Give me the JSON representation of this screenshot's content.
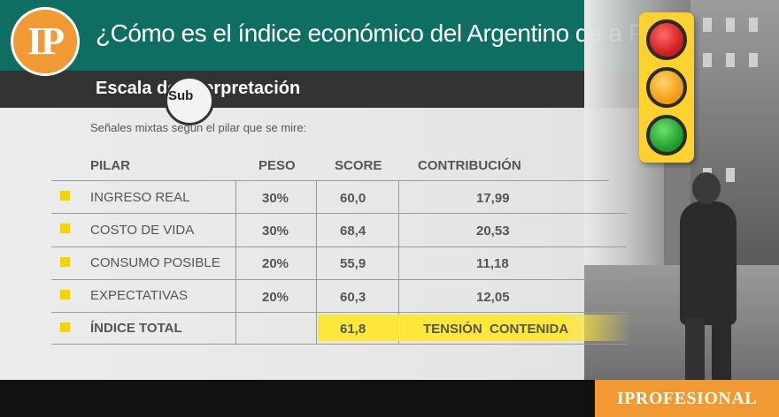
{
  "header": {
    "logo_text": "IP",
    "title": "¿Cómo es el índice económico del Argentino de a Pie?",
    "subtitle": "Escala de interpretación"
  },
  "photo": {
    "sign_text": "Sub"
  },
  "table": {
    "note": "Señales mixtas según el pilar que se mire:",
    "columns": [
      "PILAR",
      "PESO",
      "SCORE",
      "CONTRIBUCIÓN"
    ],
    "rows": [
      {
        "pilar": "INGRESO REAL",
        "peso": "30%",
        "score": "60,0",
        "contribucion": "17,99"
      },
      {
        "pilar": "COSTO DE VIDA",
        "peso": "30%",
        "score": "68,4",
        "contribucion": "20,53"
      },
      {
        "pilar": "CONSUMO POSIBLE",
        "peso": "20%",
        "score": "55,9",
        "contribucion": "11,18"
      },
      {
        "pilar": "EXPECTATIVAS",
        "peso": "20%",
        "score": "60,3",
        "contribucion": "12,05"
      }
    ],
    "total": {
      "pilar": "ÍNDICE TOTAL",
      "score": "61,8",
      "contribucion": "TENSIÓN  CONTENIDA"
    }
  },
  "colors": {
    "header_green": "#0f6e62",
    "accent_orange": "#f19a34",
    "highlight_yellow": "#fde73a",
    "bullet_yellow": "#f5d300"
  },
  "icons": [
    "traffic-light-icon",
    "bullet-square-icon"
  ],
  "footer": {
    "brand": "IPROFESIONAL"
  }
}
